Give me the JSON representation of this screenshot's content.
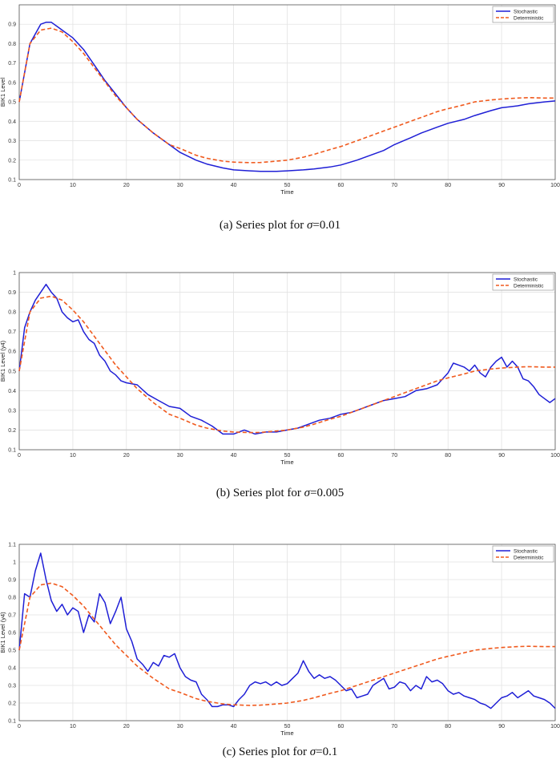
{
  "captions": [
    {
      "prefix": "(a) Series plot for ",
      "symbol": "σ",
      "suffix": "=0.01"
    },
    {
      "prefix": "(b) Series plot for ",
      "symbol": "σ",
      "suffix": "=0.005"
    },
    {
      "prefix": "(c) Series plot for ",
      "symbol": "σ",
      "suffix": "=0.1"
    }
  ],
  "colors": {
    "stochastic": "#1f1fd6",
    "deterministic": "#f05a1e",
    "grid": "#e3e3e3"
  },
  "chart_data": [
    {
      "type": "line",
      "xlabel": "Time",
      "ylabel": "BIK1 Level",
      "xlim": [
        0,
        100
      ],
      "ylim": [
        0.1,
        1.0
      ],
      "xticks": [
        0,
        10,
        20,
        30,
        40,
        50,
        60,
        70,
        80,
        90,
        100
      ],
      "yticks": [
        0.1,
        0.2,
        0.3,
        0.4,
        0.5,
        0.6,
        0.7,
        0.8,
        0.9
      ],
      "grid": true,
      "legend": "top-right",
      "series": [
        {
          "name": "Stochastic",
          "style": "solid",
          "x": [
            0,
            2,
            4,
            5,
            6,
            7,
            8,
            10,
            12,
            14,
            16,
            18,
            20,
            22,
            25,
            28,
            30,
            33,
            35,
            38,
            40,
            43,
            45,
            48,
            50,
            53,
            55,
            58,
            60,
            63,
            65,
            68,
            70,
            73,
            75,
            78,
            80,
            83,
            85,
            88,
            90,
            93,
            95,
            98,
            100
          ],
          "y": [
            0.5,
            0.8,
            0.9,
            0.91,
            0.91,
            0.89,
            0.87,
            0.83,
            0.77,
            0.69,
            0.61,
            0.54,
            0.47,
            0.41,
            0.34,
            0.28,
            0.24,
            0.2,
            0.18,
            0.16,
            0.15,
            0.145,
            0.142,
            0.142,
            0.145,
            0.15,
            0.155,
            0.165,
            0.175,
            0.2,
            0.22,
            0.25,
            0.28,
            0.315,
            0.34,
            0.37,
            0.39,
            0.41,
            0.43,
            0.455,
            0.47,
            0.48,
            0.49,
            0.5,
            0.505
          ]
        },
        {
          "name": "Deterministic",
          "style": "dashed",
          "x": [
            0,
            2,
            4,
            6,
            8,
            10,
            12,
            15,
            18,
            20,
            22,
            25,
            28,
            30,
            33,
            35,
            38,
            40,
            43,
            45,
            48,
            50,
            53,
            55,
            58,
            60,
            63,
            65,
            68,
            70,
            73,
            75,
            78,
            80,
            83,
            85,
            88,
            90,
            93,
            95,
            98,
            100
          ],
          "y": [
            0.5,
            0.8,
            0.87,
            0.88,
            0.86,
            0.81,
            0.75,
            0.64,
            0.53,
            0.47,
            0.41,
            0.34,
            0.28,
            0.26,
            0.225,
            0.21,
            0.195,
            0.19,
            0.187,
            0.188,
            0.195,
            0.2,
            0.215,
            0.23,
            0.255,
            0.27,
            0.3,
            0.32,
            0.35,
            0.37,
            0.4,
            0.42,
            0.45,
            0.465,
            0.485,
            0.5,
            0.51,
            0.515,
            0.52,
            0.522,
            0.52,
            0.52
          ]
        }
      ]
    },
    {
      "type": "line",
      "xlabel": "Time",
      "ylabel": "BIK1 Level (y4)",
      "xlim": [
        0,
        100
      ],
      "ylim": [
        0.1,
        1.0
      ],
      "xticks": [
        0,
        10,
        20,
        30,
        40,
        50,
        60,
        70,
        80,
        90,
        100
      ],
      "yticks": [
        0.1,
        0.2,
        0.3,
        0.4,
        0.5,
        0.6,
        0.7,
        0.8,
        0.9,
        1.0
      ],
      "ytick_labels": [
        "0.1",
        "0.2",
        "0.3",
        "0.4",
        "0.5",
        "0.6",
        "0.7",
        "0.8",
        "0.9",
        "1"
      ],
      "grid": true,
      "legend": "top-right",
      "series": [
        {
          "name": "Stochastic",
          "style": "solid",
          "x": [
            0,
            1,
            2,
            3,
            4,
            5,
            6,
            7,
            8,
            9,
            10,
            11,
            12,
            13,
            14,
            15,
            16,
            17,
            18,
            19,
            20,
            22,
            24,
            26,
            28,
            30,
            32,
            34,
            36,
            38,
            40,
            42,
            44,
            46,
            48,
            50,
            52,
            54,
            56,
            58,
            60,
            62,
            64,
            66,
            68,
            70,
            72,
            74,
            76,
            78,
            80,
            81,
            82,
            83,
            84,
            85,
            86,
            87,
            88,
            89,
            90,
            91,
            92,
            93,
            94,
            95,
            96,
            97,
            98,
            99,
            100
          ],
          "y": [
            0.5,
            0.72,
            0.8,
            0.86,
            0.9,
            0.94,
            0.9,
            0.87,
            0.8,
            0.77,
            0.75,
            0.76,
            0.7,
            0.66,
            0.64,
            0.58,
            0.55,
            0.5,
            0.48,
            0.45,
            0.44,
            0.43,
            0.38,
            0.35,
            0.32,
            0.31,
            0.27,
            0.25,
            0.22,
            0.18,
            0.18,
            0.2,
            0.18,
            0.19,
            0.19,
            0.2,
            0.21,
            0.23,
            0.25,
            0.26,
            0.28,
            0.29,
            0.31,
            0.33,
            0.35,
            0.36,
            0.37,
            0.4,
            0.41,
            0.43,
            0.49,
            0.54,
            0.53,
            0.52,
            0.5,
            0.53,
            0.49,
            0.47,
            0.52,
            0.55,
            0.57,
            0.52,
            0.55,
            0.52,
            0.46,
            0.45,
            0.42,
            0.38,
            0.36,
            0.34,
            0.36
          ]
        },
        {
          "name": "Deterministic",
          "style": "dashed",
          "x": [
            0,
            2,
            4,
            6,
            8,
            10,
            12,
            15,
            18,
            20,
            22,
            25,
            28,
            30,
            33,
            35,
            38,
            40,
            43,
            45,
            48,
            50,
            53,
            55,
            58,
            60,
            63,
            65,
            68,
            70,
            73,
            75,
            78,
            80,
            83,
            85,
            88,
            90,
            93,
            95,
            98,
            100
          ],
          "y": [
            0.5,
            0.8,
            0.87,
            0.88,
            0.86,
            0.81,
            0.75,
            0.64,
            0.53,
            0.47,
            0.41,
            0.34,
            0.28,
            0.26,
            0.225,
            0.21,
            0.195,
            0.19,
            0.187,
            0.188,
            0.195,
            0.2,
            0.215,
            0.23,
            0.255,
            0.27,
            0.3,
            0.32,
            0.35,
            0.37,
            0.4,
            0.42,
            0.45,
            0.465,
            0.485,
            0.5,
            0.51,
            0.515,
            0.52,
            0.522,
            0.52,
            0.52
          ]
        }
      ]
    },
    {
      "type": "line",
      "xlabel": "Time",
      "ylabel": "BIK1 Level (y4)",
      "xlim": [
        0,
        100
      ],
      "ylim": [
        0.1,
        1.1
      ],
      "xticks": [
        0,
        10,
        20,
        30,
        40,
        50,
        60,
        70,
        80,
        90,
        100
      ],
      "yticks": [
        0.1,
        0.2,
        0.3,
        0.4,
        0.5,
        0.6,
        0.7,
        0.8,
        0.9,
        1.0,
        1.1
      ],
      "ytick_labels": [
        "0.1",
        "0.2",
        "0.3",
        "0.4",
        "0.5",
        "0.6",
        "0.7",
        "0.8",
        "0.9",
        "1",
        "1.1"
      ],
      "grid": true,
      "legend": "top-right",
      "series": [
        {
          "name": "Stochastic",
          "style": "solid",
          "x": [
            0,
            1,
            2,
            3,
            4,
            5,
            6,
            7,
            8,
            9,
            10,
            11,
            12,
            13,
            14,
            15,
            16,
            17,
            18,
            19,
            20,
            21,
            22,
            23,
            24,
            25,
            26,
            27,
            28,
            29,
            30,
            31,
            32,
            33,
            34,
            35,
            36,
            37,
            38,
            39,
            40,
            41,
            42,
            43,
            44,
            45,
            46,
            47,
            48,
            49,
            50,
            51,
            52,
            53,
            54,
            55,
            56,
            57,
            58,
            59,
            60,
            61,
            62,
            63,
            64,
            65,
            66,
            67,
            68,
            69,
            70,
            71,
            72,
            73,
            74,
            75,
            76,
            77,
            78,
            79,
            80,
            81,
            82,
            83,
            84,
            85,
            86,
            87,
            88,
            89,
            90,
            91,
            92,
            93,
            94,
            95,
            96,
            97,
            98,
            99,
            100
          ],
          "y": [
            0.5,
            0.82,
            0.8,
            0.95,
            1.05,
            0.9,
            0.78,
            0.72,
            0.76,
            0.7,
            0.74,
            0.72,
            0.6,
            0.7,
            0.66,
            0.82,
            0.77,
            0.65,
            0.72,
            0.8,
            0.62,
            0.55,
            0.45,
            0.42,
            0.38,
            0.43,
            0.41,
            0.47,
            0.46,
            0.48,
            0.4,
            0.35,
            0.33,
            0.32,
            0.25,
            0.22,
            0.18,
            0.18,
            0.19,
            0.19,
            0.18,
            0.22,
            0.25,
            0.3,
            0.32,
            0.31,
            0.32,
            0.3,
            0.32,
            0.3,
            0.31,
            0.34,
            0.37,
            0.44,
            0.38,
            0.34,
            0.36,
            0.34,
            0.35,
            0.33,
            0.3,
            0.27,
            0.28,
            0.23,
            0.24,
            0.25,
            0.3,
            0.32,
            0.34,
            0.28,
            0.29,
            0.32,
            0.31,
            0.27,
            0.3,
            0.28,
            0.35,
            0.32,
            0.33,
            0.31,
            0.27,
            0.25,
            0.26,
            0.24,
            0.23,
            0.22,
            0.2,
            0.19,
            0.17,
            0.2,
            0.23,
            0.24,
            0.26,
            0.23,
            0.25,
            0.27,
            0.24,
            0.23,
            0.22,
            0.2,
            0.17
          ]
        },
        {
          "name": "Deterministic",
          "style": "dashed",
          "x": [
            0,
            2,
            4,
            6,
            8,
            10,
            12,
            15,
            18,
            20,
            22,
            25,
            28,
            30,
            33,
            35,
            38,
            40,
            43,
            45,
            48,
            50,
            53,
            55,
            58,
            60,
            63,
            65,
            68,
            70,
            73,
            75,
            78,
            80,
            83,
            85,
            88,
            90,
            93,
            95,
            98,
            100
          ],
          "y": [
            0.5,
            0.8,
            0.87,
            0.88,
            0.86,
            0.81,
            0.75,
            0.64,
            0.53,
            0.47,
            0.41,
            0.34,
            0.28,
            0.26,
            0.225,
            0.21,
            0.195,
            0.19,
            0.187,
            0.188,
            0.195,
            0.2,
            0.215,
            0.23,
            0.255,
            0.27,
            0.3,
            0.32,
            0.35,
            0.37,
            0.4,
            0.42,
            0.45,
            0.465,
            0.485,
            0.5,
            0.51,
            0.515,
            0.52,
            0.522,
            0.52,
            0.52
          ]
        }
      ]
    }
  ]
}
